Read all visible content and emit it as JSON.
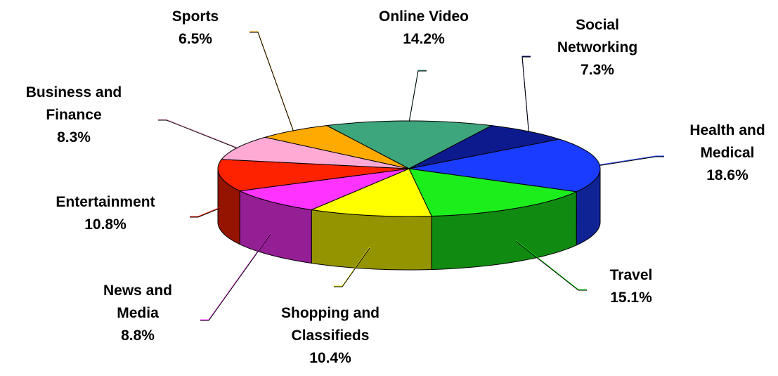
{
  "chart_data": {
    "type": "pie3d",
    "categories": [
      "Online Video",
      "Social Networking",
      "Health and Medical",
      "Travel",
      "Shopping and Classifieds",
      "News and Media",
      "Entertainment",
      "Business and Finance",
      "Sports"
    ],
    "values": [
      14.2,
      7.3,
      18.6,
      15.1,
      10.4,
      8.8,
      10.8,
      8.3,
      6.5
    ],
    "value_labels": [
      "14.2%",
      "7.3%",
      "18.6%",
      "15.1%",
      "10.4%",
      "8.8%",
      "10.8%",
      "8.3%",
      "6.5%"
    ],
    "colors": [
      "#3ea67c",
      "#0c1a8e",
      "#1a3cff",
      "#1cee1c",
      "#ffff00",
      "#ff33ff",
      "#ff2200",
      "#ffaad4",
      "#ffaa00"
    ]
  }
}
